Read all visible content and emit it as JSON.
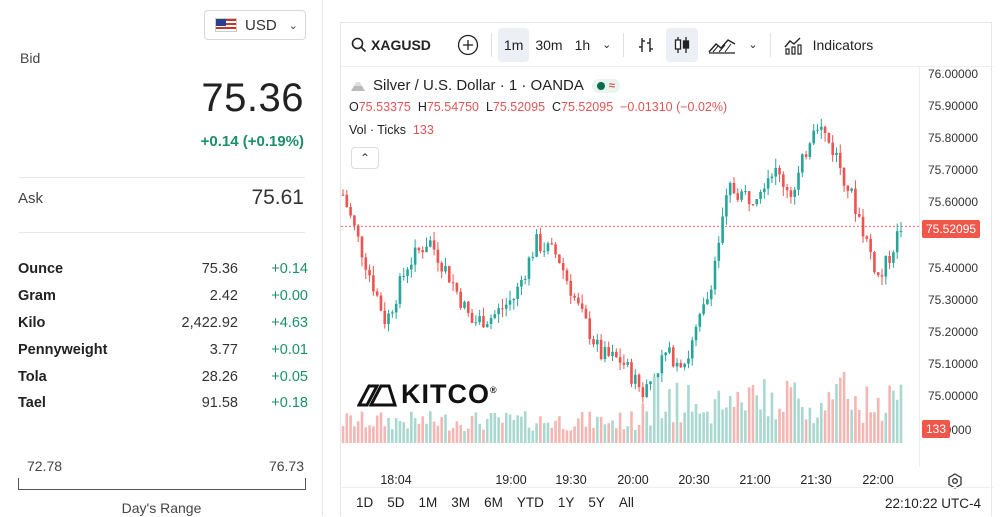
{
  "currency": {
    "code": "USD",
    "flag_icon": "us-flag-icon"
  },
  "bid": {
    "label": "Bid",
    "value": "75.36",
    "change": "+0.14 (+0.19%)"
  },
  "ask": {
    "label": "Ask",
    "value": "75.61"
  },
  "units": [
    {
      "name": "Ounce",
      "price": "75.36",
      "change": "+0.14"
    },
    {
      "name": "Gram",
      "price": "2.42",
      "change": "+0.00"
    },
    {
      "name": "Kilo",
      "price": "2,422.92",
      "change": "+4.63"
    },
    {
      "name": "Pennyweight",
      "price": "3.77",
      "change": "+0.01"
    },
    {
      "name": "Tola",
      "price": "28.26",
      "change": "+0.05"
    },
    {
      "name": "Tael",
      "price": "91.58",
      "change": "+0.18"
    }
  ],
  "day_range": {
    "low": "72.78",
    "high": "76.73",
    "label": "Day's Range"
  },
  "toolbar": {
    "symbol": "XAGUSD",
    "intervals": [
      "1m",
      "30m",
      "1h"
    ],
    "active_interval": "1m",
    "indicators_label": "Indicators"
  },
  "legend": {
    "title": "Silver / U.S. Dollar · 1 · OANDA",
    "o_label": "O",
    "o": "75.53375",
    "h_label": "H",
    "h": "75.54750",
    "l_label": "L",
    "l": "75.52095",
    "c_label": "C",
    "c": "75.52095",
    "chg": "−0.01310 (−0.02%)",
    "vol_label": "Vol · Ticks",
    "vol": "133"
  },
  "logo": {
    "text": "KITCO",
    "reg": "®"
  },
  "price_axis": [
    "76.00000",
    "75.90000",
    "75.80000",
    "75.70000",
    "75.60000",
    "75.50000",
    "75.40000",
    "75.30000",
    "75.20000",
    "75.10000",
    "75.00000",
    "75.0000"
  ],
  "last_price_tag": "75.52095",
  "volume_tag": "133",
  "time_axis": [
    "18:04",
    "19:00",
    "19:30",
    "20:00",
    "20:30",
    "21:00",
    "21:30",
    "22:00"
  ],
  "ranges": [
    "1D",
    "5D",
    "1M",
    "3M",
    "6M",
    "YTD",
    "1Y",
    "5Y",
    "All"
  ],
  "clock": "22:10:22 UTC-4",
  "colors": {
    "up": "#26a69a",
    "down": "#ef5350",
    "positive_text": "#1b8f6a"
  },
  "chart_data": {
    "type": "candlestick",
    "symbol": "XAGUSD",
    "ylim": [
      75.0,
      76.0
    ],
    "x": [
      "18:04",
      "19:00",
      "19:30",
      "20:00",
      "20:30",
      "21:00",
      "21:30",
      "22:00"
    ],
    "close_path": [
      75.62,
      75.42,
      75.22,
      75.4,
      75.48,
      75.36,
      75.22,
      75.24,
      75.3,
      75.47,
      75.43,
      75.26,
      75.12,
      75.1,
      75.0,
      75.12,
      75.1,
      75.3,
      75.64,
      75.61,
      75.7,
      75.62,
      75.86,
      75.74,
      75.56,
      75.35,
      75.52
    ]
  }
}
